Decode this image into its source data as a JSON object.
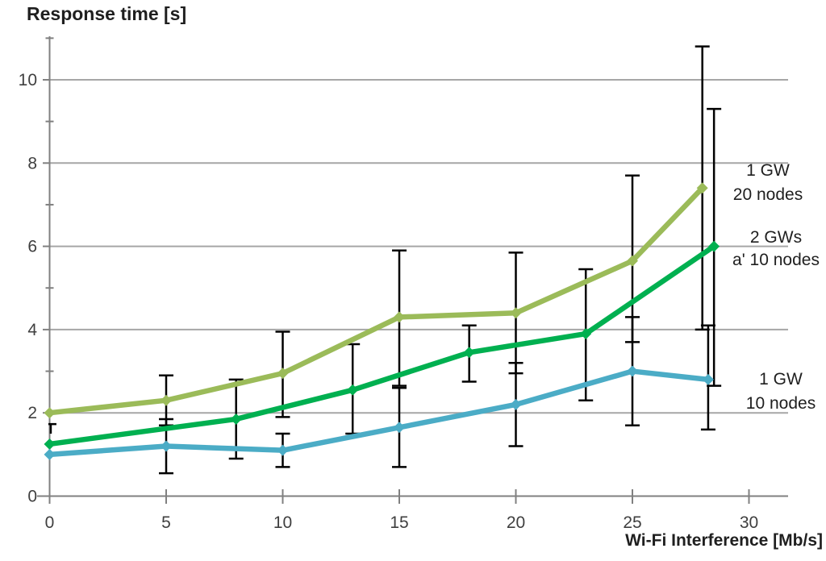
{
  "chart_data": {
    "type": "line",
    "title": "Response time [s]",
    "xlabel": "Wi-Fi Interference [Mb/s]",
    "ylabel": "Response time [s]",
    "x_ticks": [
      0,
      5,
      10,
      15,
      20,
      25,
      30
    ],
    "y_ticks": [
      0,
      2,
      4,
      6,
      8,
      10
    ],
    "y_minor_ticks": [
      1,
      3,
      5,
      7,
      9,
      11
    ],
    "xlim": [
      0,
      31.7
    ],
    "ylim": [
      0,
      11
    ],
    "grid": "horizontal-major",
    "legend_position": "inline-labels-right",
    "series": [
      {
        "name": "1 GW 20 nodes",
        "label_lines": [
          "1 GW",
          "20 nodes"
        ],
        "color": "#9bbb59",
        "marker": "diamond",
        "points": [
          {
            "x": 0,
            "y": 2.0
          },
          {
            "x": 5,
            "y": 2.3
          },
          {
            "x": 10,
            "y": 2.95
          },
          {
            "x": 15,
            "y": 4.3
          },
          {
            "x": 20,
            "y": 4.4
          },
          {
            "x": 25,
            "y": 5.65
          },
          {
            "x": 28,
            "y": 7.4
          }
        ],
        "error_bars": [
          {
            "x": 5,
            "lo": 1.7,
            "hi": 2.9
          },
          {
            "x": 10,
            "lo": 1.9,
            "hi": 3.95
          },
          {
            "x": 15,
            "lo": 2.65,
            "hi": 5.9
          },
          {
            "x": 20,
            "lo": 2.95,
            "hi": 5.85
          },
          {
            "x": 25,
            "lo": 3.7,
            "hi": 7.7
          },
          {
            "x": 28,
            "lo": 4.0,
            "hi": 10.8
          }
        ]
      },
      {
        "name": "2 GWs a' 10 nodes",
        "label_lines": [
          "2 GWs",
          "a' 10 nodes"
        ],
        "color": "#00b050",
        "marker": "diamond",
        "points": [
          {
            "x": 0,
            "y": 1.25
          },
          {
            "x": 8,
            "y": 1.85
          },
          {
            "x": 13,
            "y": 2.55
          },
          {
            "x": 18,
            "y": 3.45
          },
          {
            "x": 23,
            "y": 3.9
          },
          {
            "x": 28.5,
            "y": 6.0
          }
        ],
        "error_bars": [
          {
            "x": 8,
            "lo": 0.9,
            "hi": 2.8
          },
          {
            "x": 13,
            "lo": 1.5,
            "hi": 3.65
          },
          {
            "x": 18,
            "lo": 2.75,
            "hi": 4.1
          },
          {
            "x": 23,
            "lo": 2.3,
            "hi": 5.45
          },
          {
            "x": 28.5,
            "lo": 2.65,
            "hi": 9.3
          }
        ]
      },
      {
        "name": "1 GW 10 nodes",
        "label_lines": [
          "1 GW",
          "10 nodes"
        ],
        "color": "#4bacc6",
        "marker": "diamond",
        "points": [
          {
            "x": 0,
            "y": 1.0
          },
          {
            "x": 5,
            "y": 1.2
          },
          {
            "x": 10,
            "y": 1.1
          },
          {
            "x": 15,
            "y": 1.65
          },
          {
            "x": 20,
            "y": 2.2
          },
          {
            "x": 25,
            "y": 3.0
          },
          {
            "x": 28.25,
            "y": 2.8
          }
        ],
        "error_bars": [
          {
            "x": 5,
            "lo": 0.55,
            "hi": 1.85
          },
          {
            "x": 10,
            "lo": 0.7,
            "hi": 1.5
          },
          {
            "x": 15,
            "lo": 0.7,
            "hi": 2.6
          },
          {
            "x": 20,
            "lo": 1.2,
            "hi": 3.2
          },
          {
            "x": 25,
            "lo": 1.7,
            "hi": 4.3
          },
          {
            "x": 28.25,
            "lo": 1.6,
            "hi": 4.1
          }
        ]
      }
    ],
    "extra_mark": {
      "x": 0.05,
      "y_lo": 1.5,
      "y_hi": 1.73
    },
    "colors": {
      "grid": "#a6a6a6",
      "axis": "#808080",
      "error_bar": "#000000",
      "title_text": "#1f1f1f",
      "tick_text": "#3f3f3f"
    }
  }
}
